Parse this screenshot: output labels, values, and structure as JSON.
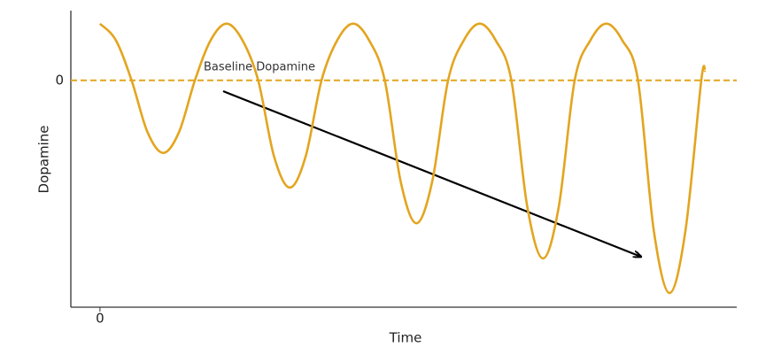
{
  "chart_data": {
    "type": "line",
    "x_label": "Time",
    "y_label": "Dopamine",
    "annotation": "Baseline Dopamine",
    "x": [
      0,
      0.125,
      0.25,
      0.375,
      0.5,
      0.625,
      0.75,
      0.875,
      1,
      1.125,
      1.25,
      1.375,
      1.5,
      1.625,
      1.75,
      1.875,
      2,
      2.125,
      2.25,
      2.375,
      2.5,
      2.625,
      2.75,
      2.875,
      3,
      3.125,
      3.25,
      3.375,
      3.5,
      3.625,
      3.75,
      3.875,
      4,
      4.125,
      4.25,
      4.375,
      4.5,
      4.625,
      4.75,
      4.78
    ],
    "series": [
      {
        "color": "#e3a51f",
        "values": [
          1,
          0.71,
          0,
          -0.91,
          -1.28,
          -0.91,
          0,
          0.71,
          1,
          0.71,
          0,
          -1.34,
          -1.89,
          -1.34,
          0,
          0.71,
          1,
          0.71,
          0,
          -1.78,
          -2.52,
          -1.78,
          0,
          0.71,
          1,
          0.71,
          0,
          -2.22,
          -3.14,
          -2.22,
          0,
          0.71,
          1,
          0.71,
          0,
          -2.65,
          -3.75,
          -2.65,
          0,
          0.17
        ]
      }
    ],
    "xlim": [
      -0.23,
      5.03
    ],
    "ylim": [
      -4,
      1.23
    ],
    "xticks": [
      0
    ],
    "yticks": [
      0
    ],
    "baseline_color": "#e3a51f"
  }
}
